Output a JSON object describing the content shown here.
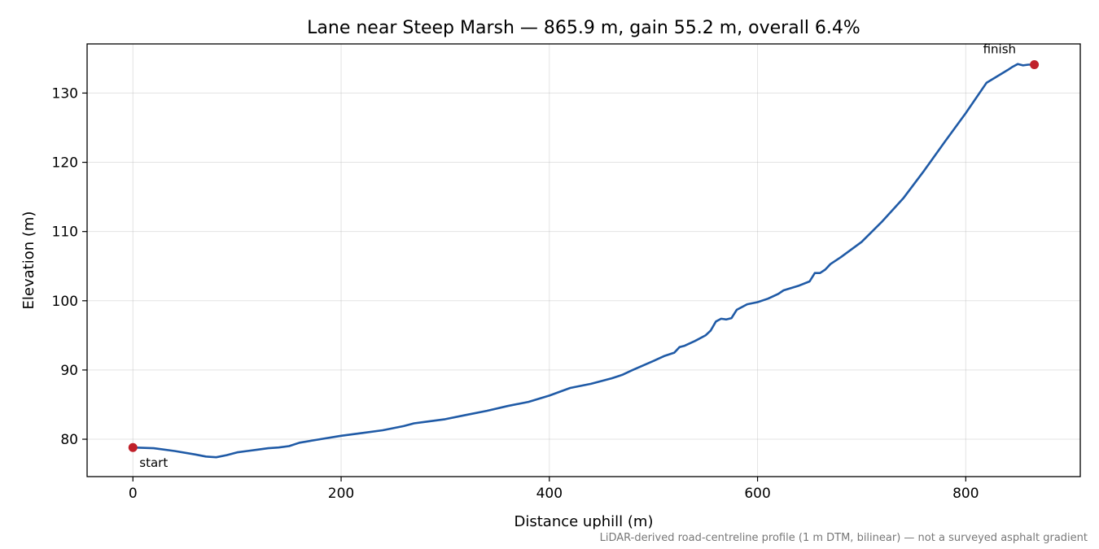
{
  "chart_data": {
    "type": "line",
    "title": "Lane near Steep Marsh — 865.9 m, gain 55.2 m, overall 6.4%",
    "xlabel": "Distance uphill (m)",
    "ylabel": "Elevation (m)",
    "xlim": [
      -44,
      910
    ],
    "ylim": [
      74.6,
      137.1
    ],
    "xticks": [
      0,
      200,
      400,
      600,
      800
    ],
    "yticks": [
      80,
      90,
      100,
      110,
      120,
      130
    ],
    "grid": true,
    "line_color": "#1f5aa6",
    "marker_color": "#c0202a",
    "series": [
      {
        "x": [
          0,
          20,
          40,
          60,
          70,
          80,
          90,
          100,
          110,
          120,
          130,
          140,
          150,
          160,
          180,
          200,
          220,
          240,
          260,
          270,
          280,
          300,
          320,
          340,
          360,
          380,
          400,
          420,
          440,
          460,
          470,
          480,
          500,
          510,
          520,
          525,
          530,
          540,
          550,
          555,
          560,
          565,
          570,
          575,
          580,
          590,
          600,
          610,
          620,
          625,
          640,
          650,
          655,
          660,
          665,
          670,
          680,
          700,
          720,
          740,
          760,
          780,
          800,
          820,
          840,
          845,
          850,
          855,
          860,
          865.9
        ],
        "y": [
          78.8,
          78.7,
          78.3,
          77.8,
          77.5,
          77.4,
          77.7,
          78.1,
          78.3,
          78.5,
          78.7,
          78.8,
          79.0,
          79.5,
          80.0,
          80.5,
          80.9,
          81.3,
          81.9,
          82.3,
          82.5,
          82.9,
          83.5,
          84.1,
          84.8,
          85.4,
          86.3,
          87.4,
          88.0,
          88.8,
          89.3,
          90.0,
          91.3,
          92.0,
          92.5,
          93.3,
          93.5,
          94.2,
          95.0,
          95.7,
          97.0,
          97.4,
          97.3,
          97.5,
          98.7,
          99.5,
          99.8,
          100.3,
          101.0,
          101.5,
          102.2,
          102.8,
          104.0,
          104.0,
          104.5,
          105.3,
          106.3,
          108.5,
          111.5,
          114.8,
          118.8,
          123.0,
          127.1,
          131.5,
          133.3,
          133.8,
          134.2,
          134.0,
          134.1,
          134.1
        ],
        "markers": [
          {
            "x": 0,
            "y": 78.8,
            "label": "start"
          },
          {
            "x": 865.9,
            "y": 134.1,
            "label": "finish"
          }
        ]
      }
    ],
    "footnote": "LiDAR-derived road-centreline profile (1 m DTM, bilinear) — not a surveyed asphalt gradient"
  }
}
